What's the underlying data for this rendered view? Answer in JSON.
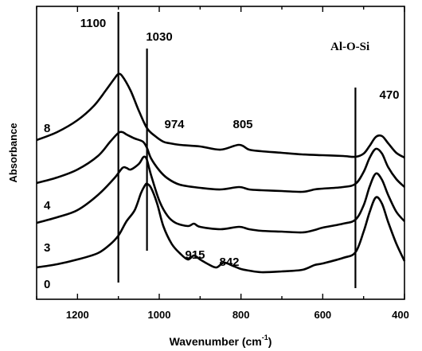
{
  "chart_data": {
    "type": "line",
    "xlabel": "Wavenumber (cm",
    "xlabel_sup": "-1",
    "xlabel_close": ")",
    "ylabel": "Absorbance",
    "xlim": [
      1300,
      400
    ],
    "x_reversed": true,
    "xticks": [
      1200,
      1000,
      800,
      600,
      400
    ],
    "y_ticks_shown": false,
    "grid": false,
    "legend": "none",
    "vertical_markers": [
      1100,
      1030,
      520
    ],
    "group_annotation": "Al-O-Si",
    "peak_labels": [
      {
        "text": "1100",
        "x": 1100
      },
      {
        "text": "1030",
        "x": 1030
      },
      {
        "text": "974",
        "x": 974
      },
      {
        "text": "805",
        "x": 805
      },
      {
        "text": "915",
        "x": 915
      },
      {
        "text": "842",
        "x": 842
      },
      {
        "text": "470",
        "x": 470
      }
    ],
    "series": [
      {
        "name": "8",
        "x": [
          1300,
          1250,
          1200,
          1160,
          1130,
          1110,
          1100,
          1090,
          1070,
          1050,
          1030,
          1010,
          990,
          974,
          950,
          900,
          850,
          805,
          780,
          750,
          700,
          650,
          600,
          550,
          520,
          500,
          485,
          470,
          455,
          440,
          420,
          400
        ],
        "y": [
          200,
          210,
          225,
          243,
          263,
          277,
          283,
          280,
          262,
          237,
          215,
          205,
          198,
          196,
          194,
          192,
          188,
          194,
          188,
          186,
          184,
          182,
          181,
          180,
          179,
          183,
          193,
          204,
          205,
          196,
          184,
          178
        ]
      },
      {
        "name": "4",
        "x": [
          1300,
          1250,
          1200,
          1150,
          1120,
          1100,
          1090,
          1080,
          1060,
          1040,
          1030,
          1020,
          1000,
          980,
          950,
          900,
          850,
          805,
          780,
          750,
          700,
          650,
          620,
          600,
          550,
          520,
          500,
          485,
          470,
          455,
          440,
          420,
          400
        ],
        "y": [
          146,
          153,
          163,
          180,
          198,
          209,
          210,
          207,
          202,
          198,
          190,
          177,
          162,
          152,
          144,
          140,
          138,
          141,
          138,
          137,
          136,
          135,
          138,
          139,
          141,
          145,
          160,
          178,
          189,
          183,
          166,
          151,
          141
        ]
      },
      {
        "name": "3",
        "x": [
          1300,
          1250,
          1200,
          1150,
          1110,
          1090,
          1080,
          1070,
          1050,
          1040,
          1035,
          1030,
          1020,
          1000,
          980,
          960,
          930,
          915,
          900,
          850,
          805,
          780,
          750,
          700,
          650,
          620,
          600,
          550,
          520,
          500,
          485,
          470,
          455,
          440,
          420,
          400
        ],
        "y": [
          96,
          103,
          112,
          131,
          152,
          165,
          165,
          163,
          170,
          178,
          179,
          175,
          156,
          124,
          105,
          96,
          92,
          95,
          91,
          88,
          91,
          88,
          86,
          85,
          84,
          87,
          90,
          95,
          100,
          118,
          142,
          158,
          150,
          131,
          110,
          98
        ]
      },
      {
        "name": "0",
        "x": [
          1300,
          1250,
          1200,
          1150,
          1120,
          1100,
          1080,
          1060,
          1045,
          1035,
          1030,
          1020,
          1005,
          990,
          970,
          950,
          930,
          915,
          900,
          880,
          860,
          842,
          820,
          800,
          780,
          750,
          700,
          650,
          620,
          600,
          550,
          520,
          500,
          485,
          470,
          455,
          440,
          420,
          400
        ],
        "y": [
          40,
          44,
          50,
          58,
          69,
          80,
          98,
          112,
          133,
          143,
          145,
          140,
          120,
          92,
          70,
          58,
          50,
          55,
          50,
          44,
          40,
          46,
          42,
          38,
          36,
          34,
          35,
          37,
          43,
          45,
          52,
          59,
          85,
          110,
          128,
          120,
          97,
          70,
          48
        ]
      }
    ]
  }
}
